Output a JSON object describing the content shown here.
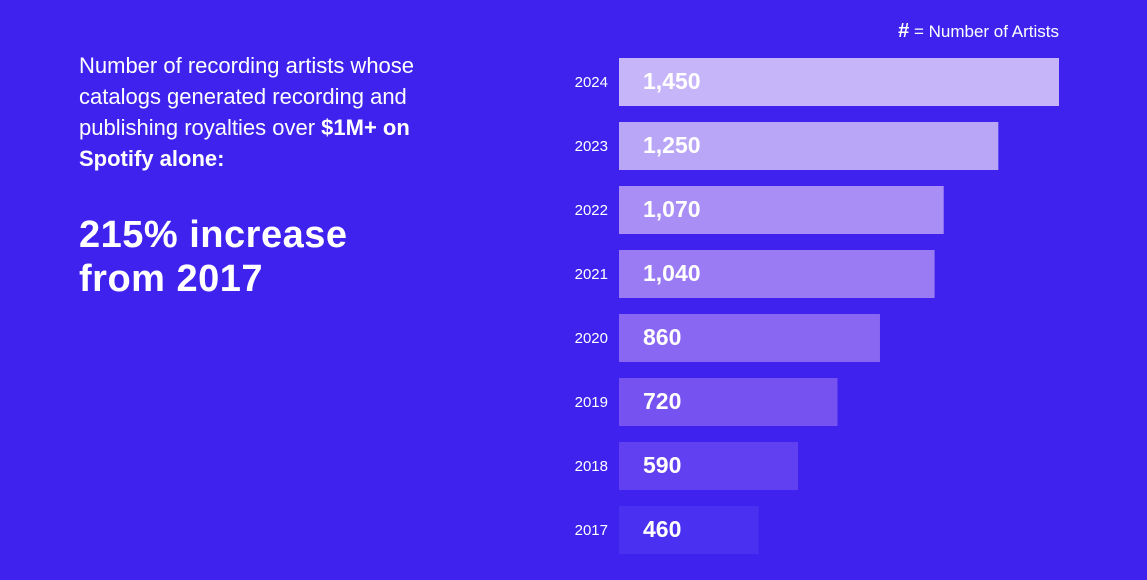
{
  "chart_data": {
    "type": "bar",
    "orientation": "horizontal",
    "description": "Number of recording artists whose catalogs generated recording and publishing royalties over",
    "description_emphasis": "$1M+ on Spotify alone:",
    "headline": "215% increase from 2017",
    "legend_symbol": "#",
    "legend_text": "= Number of Artists",
    "categories": [
      "2024",
      "2023",
      "2022",
      "2021",
      "2020",
      "2019",
      "2018",
      "2017"
    ],
    "values": [
      1450,
      1250,
      1070,
      1040,
      860,
      720,
      590,
      460
    ],
    "value_labels": [
      "1,450",
      "1,250",
      "1,070",
      "1,040",
      "860",
      "720",
      "590",
      "460"
    ],
    "colors": [
      "#c6b6f9",
      "#b9a6f7",
      "#a98ef5",
      "#9a7bf3",
      "#8a67f2",
      "#7653f1",
      "#6040f0",
      "#4a30f0"
    ],
    "xlim": [
      0,
      1450
    ]
  }
}
